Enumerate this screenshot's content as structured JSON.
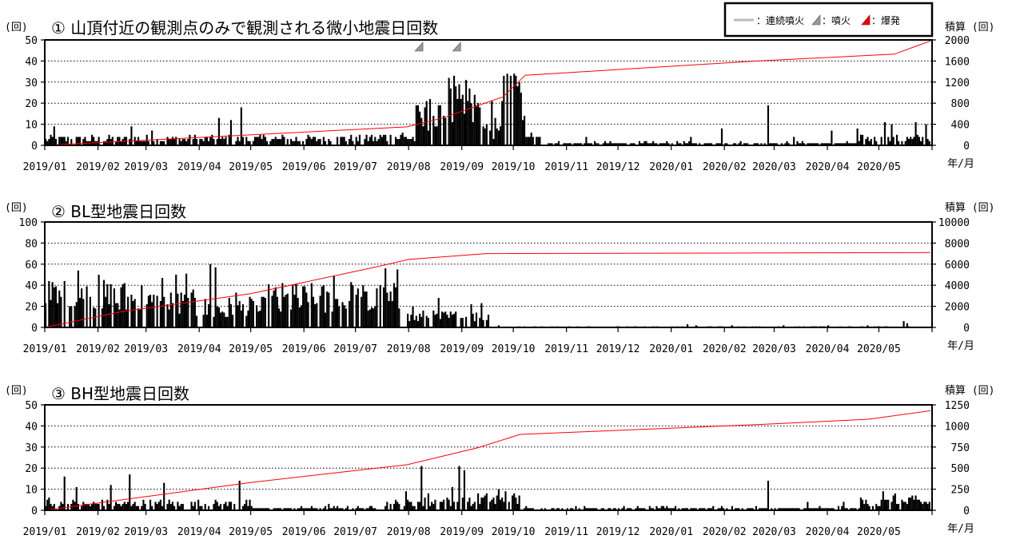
{
  "legend": {
    "continuous": "：連続噴火",
    "eruption": "：噴火",
    "explosion": "：爆発",
    "continuous_color": "#bbbbbb",
    "eruption_color": "#999999",
    "explosion_color": "#ee0000"
  },
  "x_axis": {
    "ticks": [
      "2019/01",
      "2019/02",
      "2019/03",
      "2019/04",
      "2019/05",
      "2019/06",
      "2019/07",
      "2019/08",
      "2019/09",
      "2019/10",
      "2019/11",
      "2019/12",
      "2020/01",
      "2020/02",
      "2020/03",
      "2020/04",
      "2020/05"
    ],
    "unit_label": "年/月"
  },
  "chart_data": [
    {
      "type": "bar",
      "title": "① 山頂付近の観測点のみで観測される微小地震日回数",
      "ylabel_left": "(回)",
      "ylabel_right": "積算 (回)",
      "ylim": [
        0,
        50
      ],
      "yticks": [
        0,
        10,
        20,
        30,
        40,
        50
      ],
      "ylim_right": [
        0,
        2000
      ],
      "yticks_right": [
        0,
        400,
        800,
        1200,
        1600,
        2000
      ],
      "grid": true,
      "x_range": [
        "2019-01-01",
        "2020-05-31"
      ],
      "bar_series": [
        {
          "from": "2019-01-01",
          "to": "2019-07-15",
          "level": 3,
          "spikes": {
            "2019-01-06": 9,
            "2019-02-20": 9,
            "2019-03-04": 7,
            "2019-04-12": 13,
            "2019-04-19": 12,
            "2019-04-25": 18,
            "2019-05-08": 5,
            "2019-06-20": 4,
            "2019-07-10": 5
          }
        },
        {
          "from": "2019-07-15",
          "to": "2019-08-05",
          "level": 4,
          "spikes": {
            "2019-07-28": 6
          }
        },
        {
          "from": "2019-08-05",
          "to": "2019-08-20",
          "level": 12,
          "spikes": {
            "2019-08-07": 16,
            "2019-08-11": 21,
            "2019-08-13": 22,
            "2019-08-15": 14
          }
        },
        {
          "from": "2019-08-20",
          "to": "2019-09-12",
          "level": 18,
          "spikes": {
            "2019-08-24": 32,
            "2019-08-27": 33,
            "2019-08-31": 22,
            "2019-09-03": 31,
            "2019-09-06": 20
          }
        },
        {
          "from": "2019-09-12",
          "to": "2019-09-24",
          "level": 6,
          "spikes": {
            "2019-09-15": 10,
            "2019-09-18": 21,
            "2019-09-20": 13
          }
        },
        {
          "from": "2019-09-24",
          "to": "2019-10-08",
          "level": 22,
          "spikes": {
            "2019-09-27": 34,
            "2019-09-29": 33,
            "2019-10-01": 34,
            "2019-10-03": 28,
            "2019-10-05": 25
          }
        },
        {
          "from": "2019-10-08",
          "to": "2019-10-20",
          "level": 3,
          "spikes": {
            "2019-10-11": 6
          }
        },
        {
          "from": "2019-10-20",
          "to": "2020-04-20",
          "level": 1,
          "spikes": {
            "2019-11-12": 4,
            "2019-12-16": 2,
            "2020-01-12": 4,
            "2020-01-30": 8,
            "2020-02-26": 19,
            "2020-03-12": 4,
            "2020-04-03": 7,
            "2020-04-18": 8
          }
        },
        {
          "from": "2020-04-20",
          "to": "2020-05-31",
          "level": 3,
          "spikes": {
            "2020-05-04": 11,
            "2020-05-08": 10,
            "2020-05-22": 11,
            "2020-05-28": 10
          }
        }
      ],
      "cumulative": [
        [
          "2019-01-01",
          0
        ],
        [
          "2019-07-31",
          350
        ],
        [
          "2019-08-21",
          520
        ],
        [
          "2019-09-25",
          920
        ],
        [
          "2019-10-08",
          1330
        ],
        [
          "2020-02-20",
          1600
        ],
        [
          "2020-05-10",
          1730
        ],
        [
          "2020-05-31",
          1980
        ]
      ],
      "events": [
        {
          "date": "2019-08-07",
          "type": "eruption"
        },
        {
          "date": "2019-08-29",
          "type": "eruption"
        }
      ]
    },
    {
      "type": "bar",
      "title": "② BL型地震日回数",
      "ylabel_left": "(回)",
      "ylabel_right": "積算 (回)",
      "ylim": [
        0,
        100
      ],
      "yticks": [
        0,
        20,
        40,
        60,
        80,
        100
      ],
      "ylim_right": [
        0,
        10000
      ],
      "yticks_right": [
        0,
        2000,
        4000,
        6000,
        8000,
        10000
      ],
      "grid": true,
      "x_range": [
        "2019-01-01",
        "2020-05-31"
      ],
      "bar_series": [
        {
          "from": "2019-01-01",
          "to": "2019-03-01",
          "level": 28,
          "spikes": {
            "2019-01-05": 43,
            "2019-01-20": 54,
            "2019-02-01": 50,
            "2019-02-15": 41
          }
        },
        {
          "from": "2019-03-01",
          "to": "2019-03-30",
          "level": 22,
          "spikes": {
            "2019-03-10": 47,
            "2019-03-18": 50,
            "2019-03-24": 51
          }
        },
        {
          "from": "2019-03-30",
          "to": "2019-05-10",
          "level": 18,
          "spikes": {
            "2019-04-07": 60,
            "2019-04-10": 57,
            "2019-04-22": 33
          }
        },
        {
          "from": "2019-05-10",
          "to": "2019-07-31",
          "level": 26,
          "spikes": {
            "2019-05-25": 40,
            "2019-06-18": 49,
            "2019-06-28": 43,
            "2019-07-18": 56,
            "2019-07-25": 55
          }
        },
        {
          "from": "2019-07-31",
          "to": "2019-09-17",
          "level": 10,
          "spikes": {
            "2019-08-03": 20,
            "2019-08-18": 28,
            "2019-09-06": 22,
            "2019-09-12": 23
          }
        },
        {
          "from": "2019-09-17",
          "to": "2020-05-31",
          "level": 0.4,
          "spikes": {
            "2019-09-22": 2,
            "2020-01-10": 3,
            "2020-01-15": 2,
            "2020-02-05": 2,
            "2020-03-06": 2,
            "2020-04-01": 2,
            "2020-04-24": 2,
            "2020-05-15": 6,
            "2020-05-17": 4
          }
        }
      ],
      "cumulative": [
        [
          "2019-01-01",
          0
        ],
        [
          "2019-02-15",
          1500
        ],
        [
          "2019-05-01",
          3200
        ],
        [
          "2019-07-15",
          5800
        ],
        [
          "2019-08-01",
          6450
        ],
        [
          "2019-09-15",
          7000
        ],
        [
          "2020-05-31",
          7100
        ]
      ],
      "events": []
    },
    {
      "type": "bar",
      "title": "③ BH型地震日回数",
      "ylabel_left": "(回)",
      "ylabel_right": "積算 (回)",
      "ylim": [
        0,
        50
      ],
      "yticks": [
        0,
        10,
        20,
        30,
        40,
        50
      ],
      "ylim_right": [
        0,
        1250
      ],
      "yticks_right": [
        0,
        250,
        500,
        750,
        1000,
        1250
      ],
      "grid": true,
      "x_range": [
        "2019-01-01",
        "2020-05-31"
      ],
      "bar_series": [
        {
          "from": "2019-01-01",
          "to": "2019-05-01",
          "level": 3,
          "spikes": {
            "2019-01-03": 6,
            "2019-01-12": 16,
            "2019-01-19": 11,
            "2019-02-08": 12,
            "2019-02-19": 17,
            "2019-03-11": 13,
            "2019-04-24": 14
          }
        },
        {
          "from": "2019-05-01",
          "to": "2019-07-15",
          "level": 1,
          "spikes": {
            "2019-06-15": 3
          }
        },
        {
          "from": "2019-07-15",
          "to": "2019-08-05",
          "level": 3,
          "spikes": {
            "2019-07-30": 9
          }
        },
        {
          "from": "2019-08-05",
          "to": "2019-09-10",
          "level": 4,
          "spikes": {
            "2019-08-08": 21,
            "2019-08-12": 8,
            "2019-08-26": 11,
            "2019-08-30": 21,
            "2019-09-02": 19
          }
        },
        {
          "from": "2019-09-10",
          "to": "2019-10-05",
          "level": 5,
          "spikes": {
            "2019-09-22": 10,
            "2019-09-26": 9
          }
        },
        {
          "from": "2019-10-05",
          "to": "2020-04-20",
          "level": 1,
          "spikes": {
            "2020-02-26": 14,
            "2020-03-20": 4,
            "2020-04-10": 4
          }
        },
        {
          "from": "2020-04-20",
          "to": "2020-05-31",
          "level": 4,
          "spikes": {
            "2020-05-03": 9,
            "2020-05-10": 8,
            "2020-05-22": 7,
            "2020-05-28": 4
          }
        }
      ],
      "cumulative": [
        [
          "2019-01-01",
          0
        ],
        [
          "2019-05-01",
          330
        ],
        [
          "2019-07-31",
          540
        ],
        [
          "2019-09-10",
          740
        ],
        [
          "2019-10-05",
          900
        ],
        [
          "2020-02-25",
          1020
        ],
        [
          "2020-04-25",
          1080
        ],
        [
          "2020-05-31",
          1180
        ]
      ],
      "events": []
    }
  ]
}
